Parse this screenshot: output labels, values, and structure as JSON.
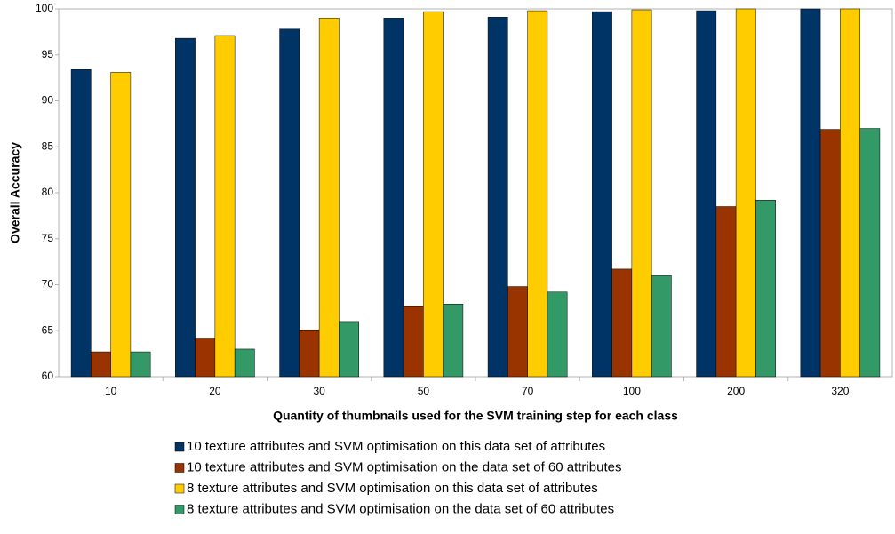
{
  "chart_data": {
    "type": "bar",
    "x_label": "Quantity of thumbnails used for the SVM training step for each class",
    "y_label": "Overall Accuracy",
    "categories": [
      "10",
      "20",
      "30",
      "50",
      "70",
      "100",
      "200",
      "320"
    ],
    "series": [
      {
        "name": "10 texture attributes and SVM optimisation on this data set of attributes",
        "color": "#003366",
        "values": [
          93.4,
          96.8,
          97.8,
          99.0,
          99.1,
          99.7,
          99.8,
          100
        ]
      },
      {
        "name": "10 texture attributes and SVM optimisation on the data set of 60 attributes",
        "color": "#993300",
        "values": [
          62.7,
          64.2,
          65.1,
          67.7,
          69.8,
          71.7,
          78.5,
          86.9
        ]
      },
      {
        "name": "8 texture attributes and SVM optimisation on this data set of attributes",
        "color": "#ffcc00",
        "values": [
          93.1,
          97.1,
          99.0,
          99.7,
          99.8,
          99.9,
          100,
          100
        ]
      },
      {
        "name": "8 texture attributes and SVM optimisation on the data set of 60 attributes",
        "color": "#339966",
        "values": [
          62.7,
          63.0,
          66.0,
          67.9,
          69.2,
          71.0,
          79.2,
          87.0
        ]
      }
    ],
    "ylim": [
      60,
      100
    ],
    "yticks": [
      60,
      65,
      70,
      75,
      80,
      85,
      90,
      95,
      100
    ],
    "grid": false,
    "legend": "bottom"
  }
}
